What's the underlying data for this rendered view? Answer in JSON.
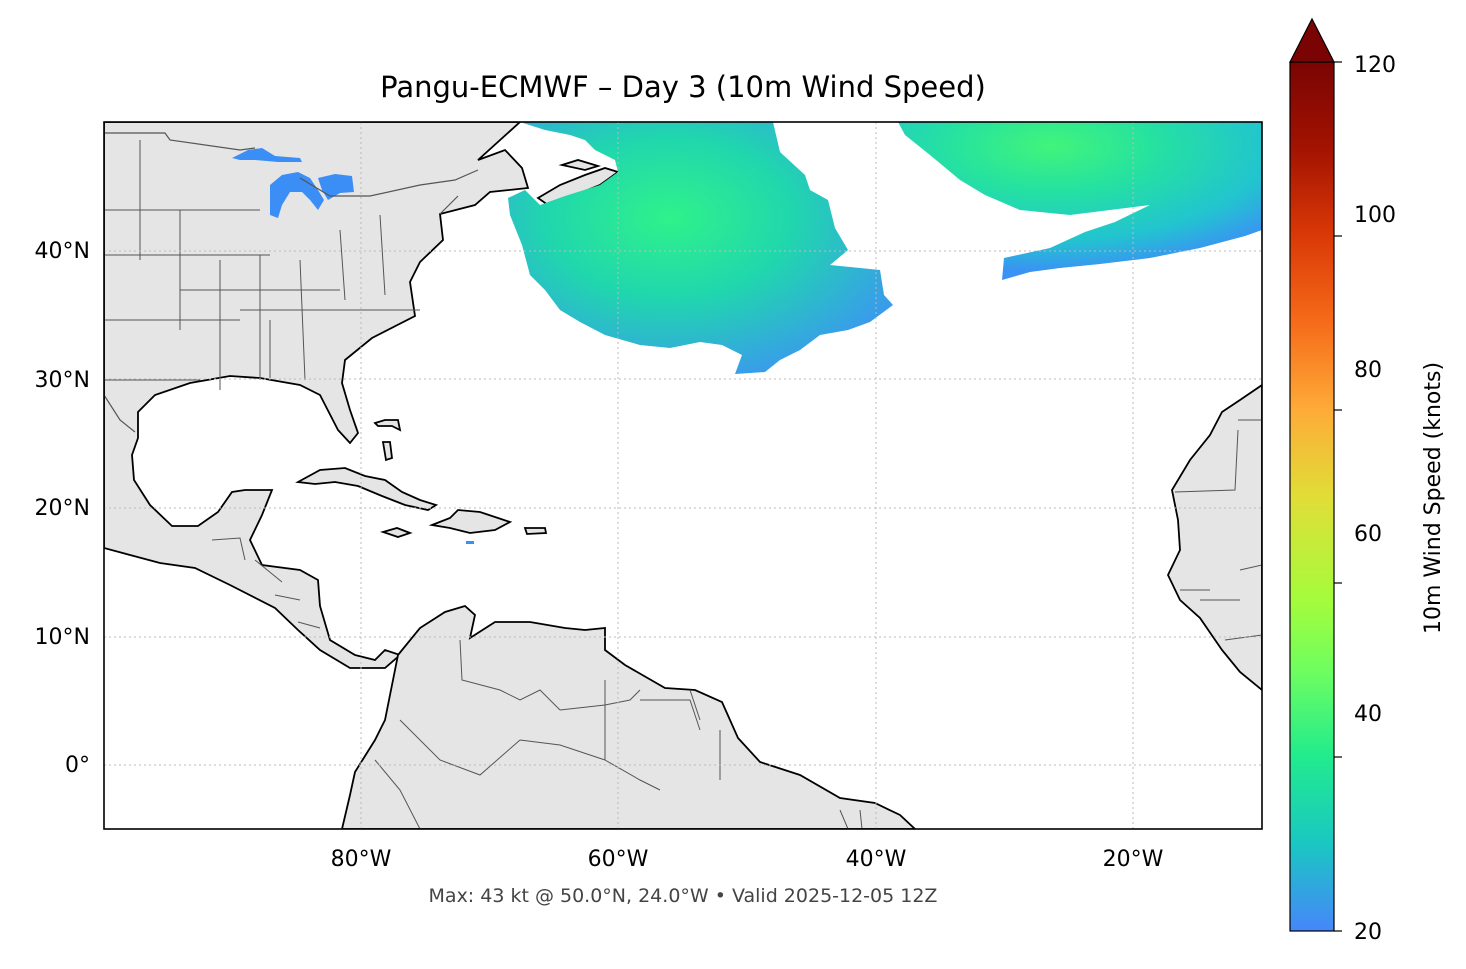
{
  "title": "Pangu-ECMWF – Day 3 (10m Wind Speed)",
  "footer": "Max: 43 kt @ 50.0°N, 24.0°W • Valid 2025-12-05 12Z",
  "map": {
    "lon_range": [
      -100,
      -10
    ],
    "lat_range": [
      -5,
      50
    ],
    "lat_ticks": [
      {
        "value": 40,
        "label": "40°N"
      },
      {
        "value": 30,
        "label": "30°N"
      },
      {
        "value": 20,
        "label": "20°N"
      },
      {
        "value": 10,
        "label": "10°N"
      },
      {
        "value": 0,
        "label": "0°"
      }
    ],
    "lon_ticks": [
      {
        "value": -80,
        "label": "80°W"
      },
      {
        "value": -60,
        "label": "60°W"
      },
      {
        "value": -40,
        "label": "40°W"
      },
      {
        "value": -20,
        "label": "20°W"
      }
    ],
    "gridlines": true,
    "land_color": "#e5e5e5",
    "ocean_color": "#ffffff"
  },
  "colorbar": {
    "label": "10m Wind Speed (knots)",
    "ticks": [
      {
        "value": 20,
        "label": "20"
      },
      {
        "value": 40,
        "label": "40"
      },
      {
        "value": 60,
        "label": "60"
      },
      {
        "value": 80,
        "label": "80"
      },
      {
        "value": 100,
        "label": "100"
      },
      {
        "value": 120,
        "label": "120"
      }
    ],
    "range": [
      20,
      120
    ],
    "extend": "max",
    "colormap": "turbo",
    "extend_color": "#7a0403"
  },
  "chart_data": {
    "type": "heatmap",
    "title": "Pangu-ECMWF – Day 3 (10m Wind Speed)",
    "variable": "10m Wind Speed (knots)",
    "threshold_min": 20,
    "max_value": 43,
    "max_location": "50.0°N, 24.0°W",
    "valid": "2025-12-05 12Z",
    "regions": [
      {
        "center_lon": -56,
        "center_lat": 42,
        "peak_kt": 36
      },
      {
        "center_lon": -25,
        "center_lat": 48,
        "peak_kt": 43
      }
    ]
  }
}
